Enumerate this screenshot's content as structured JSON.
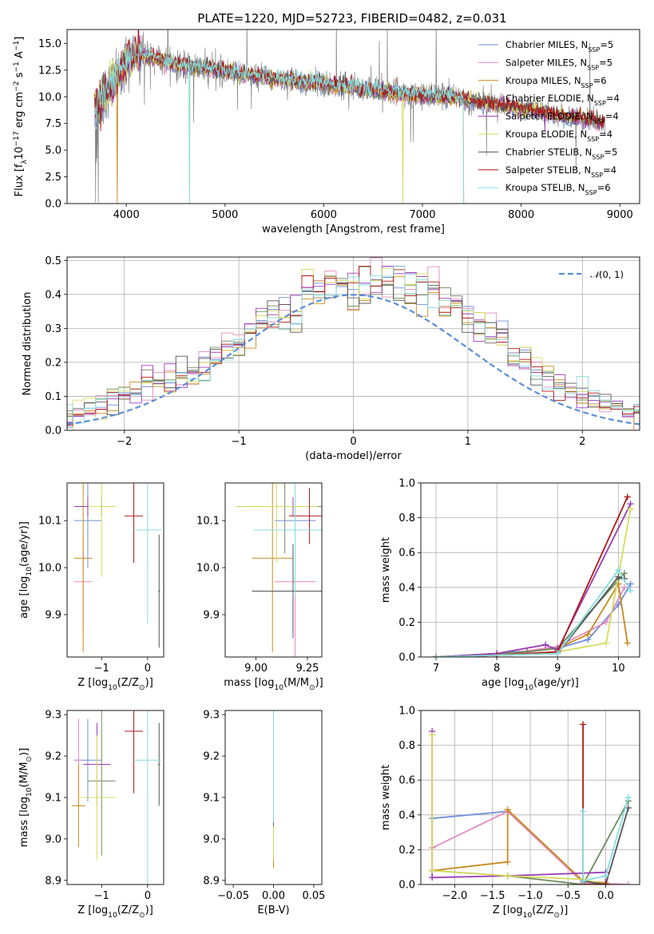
{
  "figure_title": "PLATE=1220, MJD=52723, FIBERID=0482, z=0.031",
  "colors": {
    "grid": "#b0b0b0",
    "axes": "#000000",
    "data": "#808080",
    "norm": "#5b8ed8"
  },
  "series_colors": [
    "#6f8fd8",
    "#e28cc0",
    "#c98a1e",
    "#6f8a5e",
    "#9b3db5",
    "#d4dc5a",
    "#555555",
    "#b01818",
    "#86dede"
  ],
  "series_labels": [
    "Chabrier MILES, N$_{SSP}$=5",
    "Salpeter MILES, N$_{SSP}$=5",
    "Kroupa MILES, N$_{SSP}$=6",
    "Chabrier ELODIE, N$_{SSP}$=4",
    "Salpeter ELODIE, N$_{SSP}$=4",
    "Kroupa ELODIE, N$_{SSP}$=4",
    "Chabrier STELIB, N$_{SSP}$=5",
    "Salpeter STELIB, N$_{SSP}$=4",
    "Kroupa STELIB, N$_{SSP}$=6"
  ],
  "legend_entries": [
    {
      "pre": "Chabrier MILES, N",
      "sub": "SSP",
      "post": "=5"
    },
    {
      "pre": "Salpeter MILES, N",
      "sub": "SSP",
      "post": "=5"
    },
    {
      "pre": "Kroupa MILES, N",
      "sub": "SSP",
      "post": "=6"
    },
    {
      "pre": "Chabrier ELODIE, N",
      "sub": "SSP",
      "post": "=4"
    },
    {
      "pre": "Salpeter ELODIE, N",
      "sub": "SSP",
      "post": "=4"
    },
    {
      "pre": "Kroupa ELODIE, N",
      "sub": "SSP",
      "post": "=4"
    },
    {
      "pre": "Chabrier STELIB, N",
      "sub": "SSP",
      "post": "=5"
    },
    {
      "pre": "Salpeter STELIB, N",
      "sub": "SSP",
      "post": "=4"
    },
    {
      "pre": "Kroupa STELIB, N",
      "sub": "SSP",
      "post": "=6"
    }
  ],
  "chart_data": [
    {
      "id": "spectrum",
      "type": "line",
      "title": "PLATE=1220, MJD=52723, FIBERID=0482, z=0.031",
      "xlabel": "wavelength [Angstrom, rest frame]",
      "ylabel": "Flux [f$_\\lambda$10$^{-17}$ erg cm$^{-2}$ s$^{-1}$ A$^{-1}$]",
      "xlim": [
        3400,
        9200
      ],
      "ylim": [
        0,
        16.3
      ],
      "xticks": [
        4000,
        5000,
        6000,
        7000,
        8000,
        9000
      ],
      "yticks": [
        0.0,
        2.5,
        5.0,
        7.5,
        10.0,
        12.5,
        15.0
      ],
      "grid": false,
      "legend": "top-right",
      "continuum": {
        "x": [
          3680,
          3800,
          3900,
          4000,
          4100,
          4300,
          4500,
          5000,
          5500,
          6000,
          6500,
          7000,
          7400,
          7500,
          8000,
          8500,
          8850
        ],
        "y": [
          9.0,
          10.5,
          11.8,
          13.2,
          14.0,
          13.6,
          13.0,
          12.4,
          11.7,
          11.2,
          10.6,
          10.1,
          9.9,
          9.6,
          8.9,
          8.1,
          7.6
        ]
      },
      "data_series": {
        "wavelength_range": [
          3680,
          8850
        ]
      },
      "model_dropouts": [
        {
          "series": 2,
          "x": 3910
        },
        {
          "series": 5,
          "x": 4640
        },
        {
          "series": 8,
          "x": 4640
        },
        {
          "series": 5,
          "x": 6800
        },
        {
          "series": 2,
          "x": 7420
        },
        {
          "series": 8,
          "x": 7420
        }
      ]
    },
    {
      "id": "residuals",
      "type": "histogram",
      "xlabel": "(data-model)/error",
      "ylabel": "Normed distribution",
      "xlim": [
        -2.5,
        2.5
      ],
      "ylim": [
        0,
        0.51
      ],
      "xticks": [
        -2,
        -1,
        0,
        1,
        2
      ],
      "yticks": [
        0.0,
        0.1,
        0.2,
        0.3,
        0.4,
        0.5
      ],
      "grid": true,
      "legend": "top-right",
      "legend_label": "N(0,1)",
      "bin_width": 0.1,
      "base_values": [
        0.02,
        0.025,
        0.03,
        0.035,
        0.05,
        0.06,
        0.075,
        0.09,
        0.1,
        0.12,
        0.135,
        0.14,
        0.15,
        0.16,
        0.15,
        0.19,
        0.21,
        0.25,
        0.24,
        0.29,
        0.33,
        0.35,
        0.33,
        0.33,
        0.4,
        0.41,
        0.42,
        0.43,
        0.4,
        0.41,
        0.43,
        0.44,
        0.45,
        0.43,
        0.42,
        0.4,
        0.37,
        0.38,
        0.33,
        0.32,
        0.28,
        0.27,
        0.22,
        0.2,
        0.18,
        0.15,
        0.14,
        0.12,
        0.11,
        0.09,
        0.08,
        0.065,
        0.05,
        0.04,
        0.03,
        0.025,
        0.02
      ]
    },
    {
      "id": "age-vs-Z",
      "type": "errorbar",
      "xlabel": "Z [log$_{10}$(Z/Z$_\\odot$)]",
      "ylabel": "age [log$_{10}$(age/yr)]",
      "xlim": [
        -1.75,
        0.35
      ],
      "ylim": [
        9.81,
        10.18
      ],
      "xticks": [
        -1,
        0
      ],
      "yticks": [
        9.9,
        10.0,
        10.1
      ],
      "points": [
        {
          "x": -1.3,
          "xerr": 0.3,
          "y": 10.1,
          "yerr": 0.1
        },
        {
          "x": -1.4,
          "xerr": 0.2,
          "y": 9.97,
          "yerr": 0.1
        },
        {
          "x": -1.4,
          "xerr": 0.2,
          "y": 10.02,
          "yerr": 0.2
        },
        {
          "x": -1.0,
          "xerr": 0.3,
          "y": 10.13,
          "yerr": 0.02
        },
        {
          "x": -1.3,
          "xerr": 0.3,
          "y": 10.13,
          "yerr": 0.02
        },
        {
          "x": -1.0,
          "xerr": 0.3,
          "y": 10.13,
          "yerr": 0.15
        },
        {
          "x": 0.25,
          "xerr": 0.02,
          "y": 9.95,
          "yerr": 0.12
        },
        {
          "x": -0.3,
          "xerr": 0.2,
          "y": 10.11,
          "yerr": 0.1
        },
        {
          "x": 0.0,
          "xerr": 0.3,
          "y": 10.08,
          "yerr": 0.2
        }
      ]
    },
    {
      "id": "age-vs-mass",
      "type": "errorbar",
      "xlabel": "mass [log$_{10}$(M/M$_\\odot$)]",
      "ylabel": "",
      "xlim": [
        8.85,
        9.32
      ],
      "ylim": [
        9.81,
        10.18
      ],
      "xticks": [
        9.0,
        9.25
      ],
      "yticks": [
        9.9,
        10.0,
        10.1
      ],
      "points": [
        {
          "x": 9.19,
          "xerr": 0.1,
          "y": 10.1,
          "yerr": 0.05
        },
        {
          "x": 9.19,
          "xerr": 0.1,
          "y": 9.97,
          "yerr": 0.2
        },
        {
          "x": 9.08,
          "xerr": 0.1,
          "y": 10.02,
          "yerr": 0.2
        },
        {
          "x": 9.14,
          "xerr": 0.2,
          "y": 10.13,
          "yerr": 0.1
        },
        {
          "x": 9.18,
          "xerr": 0.1,
          "y": 10.13,
          "yerr": 0.02
        },
        {
          "x": 9.1,
          "xerr": 0.2,
          "y": 10.13,
          "yerr": 0.12
        },
        {
          "x": 9.18,
          "xerr": 0.2,
          "y": 9.95,
          "yerr": 0.1
        },
        {
          "x": 9.26,
          "xerr": 0.1,
          "y": 10.11,
          "yerr": 0.06
        },
        {
          "x": 9.19,
          "xerr": 0.2,
          "y": 10.08,
          "yerr": 0.14
        }
      ]
    },
    {
      "id": "weight-vs-age",
      "type": "line",
      "xlabel": "age [log$_{10}$(age/yr)]",
      "ylabel": "mass weight",
      "xlim": [
        6.75,
        10.35
      ],
      "ylim": [
        0,
        1.0
      ],
      "xticks": [
        7,
        8,
        9,
        10
      ],
      "yticks": [
        0.0,
        0.2,
        0.4,
        0.6,
        0.8,
        1.0
      ],
      "grid": true,
      "series": [
        {
          "x": [
            7.0,
            8.0,
            9.0,
            9.5,
            10.0,
            10.2
          ],
          "y": [
            0.0,
            0.02,
            0.05,
            0.1,
            0.3,
            0.42
          ]
        },
        {
          "x": [
            7.0,
            8.0,
            9.0,
            9.8,
            10.1
          ],
          "y": [
            0.0,
            0.01,
            0.06,
            0.2,
            0.4
          ]
        },
        {
          "x": [
            7.0,
            8.0,
            9.0,
            9.5,
            10.0,
            10.15
          ],
          "y": [
            0.0,
            0.01,
            0.05,
            0.13,
            0.42,
            0.08
          ]
        },
        {
          "x": [
            7.0,
            8.5,
            9.0,
            10.1
          ],
          "y": [
            0.0,
            0.03,
            0.05,
            0.48
          ]
        },
        {
          "x": [
            7.0,
            8.0,
            8.8,
            9.0,
            10.2
          ],
          "y": [
            0.0,
            0.02,
            0.07,
            0.04,
            0.88
          ]
        },
        {
          "x": [
            7.0,
            8.0,
            9.0,
            9.8,
            10.2
          ],
          "y": [
            0.0,
            0.01,
            0.03,
            0.08,
            0.85
          ]
        },
        {
          "x": [
            7.0,
            9.0,
            10.0,
            10.1
          ],
          "y": [
            0.0,
            0.02,
            0.46,
            0.45
          ]
        },
        {
          "x": [
            7.0,
            8.0,
            9.0,
            10.15
          ],
          "y": [
            0.0,
            0.01,
            0.03,
            0.92
          ]
        },
        {
          "x": [
            7.0,
            9.0,
            10.0,
            10.2
          ],
          "y": [
            0.0,
            0.02,
            0.5,
            0.38
          ]
        }
      ]
    },
    {
      "id": "mass-vs-Z",
      "type": "errorbar",
      "xlabel": "Z [log$_{10}$(Z/Z$_\\odot$)]",
      "ylabel": "mass [log$_{10}$(M/M$_\\odot$)]",
      "xlim": [
        -1.75,
        0.35
      ],
      "ylim": [
        8.89,
        9.31
      ],
      "xticks": [
        -1,
        0
      ],
      "yticks": [
        8.9,
        9.0,
        9.1,
        9.2,
        9.3
      ],
      "points": [
        {
          "x": -1.3,
          "xerr": 0.3,
          "y": 9.19,
          "yerr": 0.1
        },
        {
          "x": -1.5,
          "xerr": 0.1,
          "y": 9.19,
          "yerr": 0.1
        },
        {
          "x": -1.5,
          "xerr": 0.15,
          "y": 9.08,
          "yerr": 0.1
        },
        {
          "x": -1.0,
          "xerr": 0.3,
          "y": 9.14,
          "yerr": 0.18
        },
        {
          "x": -1.1,
          "xerr": 0.3,
          "y": 9.18,
          "yerr": 0.1
        },
        {
          "x": -1.1,
          "xerr": 0.4,
          "y": 9.1,
          "yerr": 0.15
        },
        {
          "x": 0.25,
          "xerr": 0.02,
          "y": 9.18,
          "yerr": 0.1
        },
        {
          "x": -0.3,
          "xerr": 0.2,
          "y": 9.26,
          "yerr": 0.15
        },
        {
          "x": 0.0,
          "xerr": 0.3,
          "y": 9.19,
          "yerr": 0.3
        }
      ]
    },
    {
      "id": "mass-vs-EBV",
      "type": "errorbar",
      "xlabel": "E(B-V)",
      "ylabel": "",
      "xlim": [
        -0.06,
        0.06
      ],
      "ylim": [
        8.89,
        9.31
      ],
      "xticks": [
        -0.05,
        0.0,
        0.05
      ],
      "yticks": [
        8.9,
        9.0,
        9.1,
        9.2,
        9.3
      ],
      "points": [
        {
          "x": 0.0,
          "xerr": 0.0,
          "y": 9.19,
          "yerr": 0.1
        },
        {
          "x": 0.0,
          "xerr": 0.0,
          "y": 9.19,
          "yerr": 0.15
        },
        {
          "x": 0.0,
          "xerr": 0.0,
          "y": 9.08,
          "yerr": 0.15
        },
        {
          "x": 0.0,
          "xerr": 0.0,
          "y": 9.14,
          "yerr": 0.15
        },
        {
          "x": 0.0,
          "xerr": 0.0,
          "y": 9.18,
          "yerr": 0.15
        },
        {
          "x": 0.0,
          "xerr": 0.0,
          "y": 9.1,
          "yerr": 0.15
        },
        {
          "x": 0.0,
          "xerr": 0.0,
          "y": 9.18,
          "yerr": 0.15
        },
        {
          "x": 0.0,
          "xerr": 0.0,
          "y": 9.26,
          "yerr": 0.04
        },
        {
          "x": 0.0,
          "xerr": 0.0,
          "y": 9.19,
          "yerr": 0.15
        }
      ]
    },
    {
      "id": "weight-vs-Z",
      "type": "line",
      "xlabel": "Z [log$_{10}$(Z/Z$_\\odot$)]",
      "ylabel": "mass weight",
      "xlim": [
        -2.45,
        0.45
      ],
      "ylim": [
        0,
        1.0
      ],
      "xticks": [
        -2.0,
        -1.5,
        -1.0,
        -0.5,
        0.0
      ],
      "yticks": [
        0.0,
        0.2,
        0.4,
        0.6,
        0.8,
        1.0
      ],
      "grid": true,
      "series": [
        {
          "x": [
            -2.3,
            -1.3,
            -0.3
          ],
          "y": [
            0.38,
            0.42,
            0.02
          ]
        },
        {
          "x": [
            -2.3,
            -1.3,
            -0.3,
            0.3
          ],
          "y": [
            0.21,
            0.42,
            0.01,
            0.0
          ]
        },
        {
          "x": [
            -2.3,
            -1.3,
            -1.3,
            -0.3,
            0.0
          ],
          "y": [
            0.08,
            0.13,
            0.43,
            0.02,
            0.01
          ]
        },
        {
          "x": [
            -2.3,
            -1.3,
            -0.3,
            0.3
          ],
          "y": [
            0.08,
            0.05,
            0.0,
            0.48
          ]
        },
        {
          "x": [
            -2.3,
            -2.3,
            -1.3,
            0.0,
            0.0
          ],
          "y": [
            0.88,
            0.04,
            0.05,
            0.07,
            0.0
          ]
        },
        {
          "x": [
            -2.3,
            -2.3,
            -1.3,
            -0.3,
            0.0
          ],
          "y": [
            0.86,
            0.08,
            0.05,
            0.03,
            0.0
          ]
        },
        {
          "x": [
            -0.3,
            0.0,
            0.3
          ],
          "y": [
            0.02,
            0.0,
            0.44
          ]
        },
        {
          "x": [
            -0.3,
            -0.3,
            0.0
          ],
          "y": [
            0.92,
            0.0,
            0.0
          ]
        },
        {
          "x": [
            -0.3,
            -0.3,
            0.0,
            0.3
          ],
          "y": [
            0.42,
            0.02,
            0.05,
            0.5
          ]
        }
      ]
    }
  ]
}
